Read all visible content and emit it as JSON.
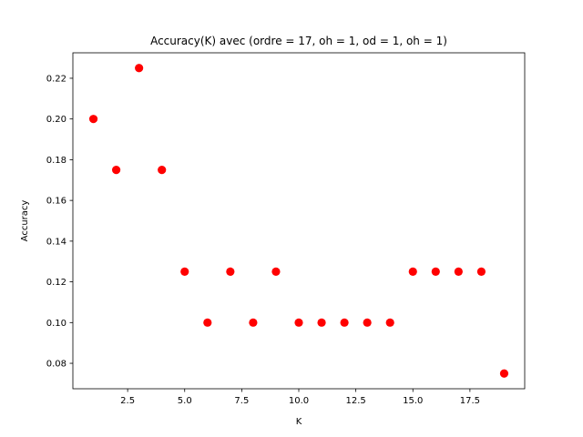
{
  "chart_data": {
    "type": "scatter",
    "title": "Accuracy(K) avec (ordre = 17, oh = 1, od = 1, oh = 1)",
    "xlabel": "K",
    "ylabel": "Accuracy",
    "xlim": [
      0.1,
      19.9
    ],
    "ylim": [
      0.0675,
      0.2325
    ],
    "xticks": [
      2.5,
      5.0,
      7.5,
      10.0,
      12.5,
      15.0,
      17.5
    ],
    "xtick_labels": [
      "2.5",
      "5.0",
      "7.5",
      "10.0",
      "12.5",
      "15.0",
      "17.5"
    ],
    "yticks": [
      0.08,
      0.1,
      0.12,
      0.14,
      0.16,
      0.18,
      0.2,
      0.22
    ],
    "ytick_labels": [
      "0.08",
      "0.10",
      "0.12",
      "0.14",
      "0.16",
      "0.18",
      "0.20",
      "0.22"
    ],
    "grid": false,
    "marker_color": "#ff0000",
    "x": [
      1,
      2,
      3,
      4,
      5,
      6,
      7,
      8,
      9,
      10,
      11,
      12,
      13,
      14,
      15,
      16,
      17,
      18,
      19
    ],
    "y": [
      0.2,
      0.175,
      0.225,
      0.175,
      0.125,
      0.1,
      0.125,
      0.1,
      0.125,
      0.1,
      0.1,
      0.1,
      0.1,
      0.1,
      0.125,
      0.125,
      0.125,
      0.125,
      0.075
    ]
  }
}
